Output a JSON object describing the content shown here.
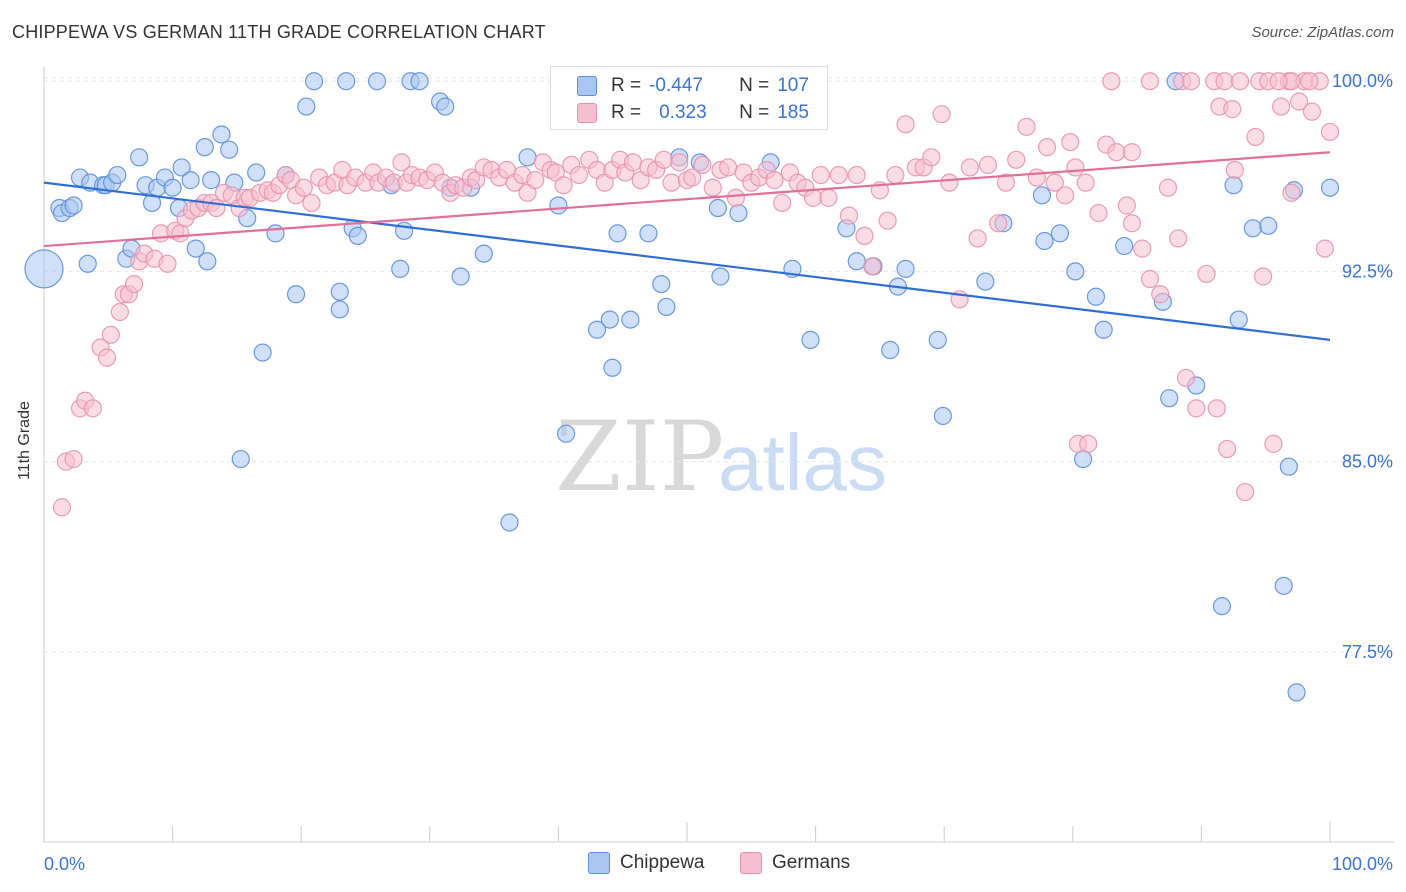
{
  "title": "CHIPPEWA VS GERMAN 11TH GRADE CORRELATION CHART",
  "source": "Source: ZipAtlas.com",
  "watermark": {
    "zip": "ZIP",
    "atlas": "atlas"
  },
  "colors": {
    "chippewa_fill": "#a9c6f2",
    "chippewa_stroke": "#5b8fd8",
    "chippewa_line": "#2f6fd3",
    "germans_fill": "#f6bfd0",
    "germans_stroke": "#e892ad",
    "germans_line": "#e0709a",
    "tick_label": "#3b72d4"
  },
  "legend": {
    "r_label": "R =",
    "n_label": "N =",
    "chippewa": {
      "r": "-0.447",
      "n": "107"
    },
    "germans": {
      "r": "0.323",
      "n": "185"
    }
  },
  "chart_data": {
    "type": "scatter",
    "title": "CHIPPEWA VS GERMAN 11TH GRADE CORRELATION CHART",
    "xlabel": "",
    "ylabel": "11th Grade",
    "xlim": [
      0,
      100
    ],
    "ylim": [
      70,
      100.6
    ],
    "x_tick_labels": [
      "0.0%",
      "100.0%"
    ],
    "y_ticks": [
      {
        "value": 100,
        "label": "100.0%"
      },
      {
        "value": 92.5,
        "label": "92.5%"
      },
      {
        "value": 85,
        "label": "85.0%"
      },
      {
        "value": 77.5,
        "label": "77.5%"
      }
    ],
    "grid": "horizontal dashed",
    "legend_position": "top-center",
    "series": [
      {
        "name": "Chippewa",
        "trend": {
          "x": [
            0,
            100
          ],
          "y": [
            96.0,
            89.8
          ]
        },
        "points": [
          [
            0,
            92.6
          ],
          [
            1.2,
            95.0
          ],
          [
            1.4,
            94.8
          ],
          [
            2.0,
            95.0
          ],
          [
            2.3,
            95.1
          ],
          [
            2.8,
            96.2
          ],
          [
            3.4,
            92.8
          ],
          [
            3.6,
            96.0
          ],
          [
            4.6,
            95.9
          ],
          [
            4.8,
            95.9
          ],
          [
            5.3,
            96.0
          ],
          [
            5.7,
            96.3
          ],
          [
            6.4,
            93.0
          ],
          [
            6.8,
            93.4
          ],
          [
            7.4,
            97.0
          ],
          [
            7.9,
            95.9
          ],
          [
            8.4,
            95.2
          ],
          [
            8.8,
            95.8
          ],
          [
            9.4,
            96.2
          ],
          [
            10.0,
            95.8
          ],
          [
            10.5,
            95.0
          ],
          [
            10.7,
            96.6
          ],
          [
            11.4,
            96.1
          ],
          [
            11.8,
            93.4
          ],
          [
            12.5,
            97.4
          ],
          [
            12.7,
            92.9
          ],
          [
            13.0,
            96.1
          ],
          [
            13.8,
            97.9
          ],
          [
            14.4,
            97.3
          ],
          [
            14.8,
            96.0
          ],
          [
            15.3,
            85.1
          ],
          [
            15.8,
            94.6
          ],
          [
            16.5,
            96.4
          ],
          [
            17.0,
            89.3
          ],
          [
            18.0,
            94.0
          ],
          [
            18.8,
            96.3
          ],
          [
            19.6,
            91.6
          ],
          [
            20.4,
            99.0
          ],
          [
            21.0,
            100.0
          ],
          [
            23.0,
            91.7
          ],
          [
            23.0,
            91.0
          ],
          [
            23.5,
            100.0
          ],
          [
            24.0,
            94.2
          ],
          [
            24.4,
            93.9
          ],
          [
            25.9,
            100.0
          ],
          [
            27.0,
            95.9
          ],
          [
            27.7,
            92.6
          ],
          [
            28.0,
            94.1
          ],
          [
            28.5,
            100.0
          ],
          [
            29.2,
            100.0
          ],
          [
            30.8,
            99.2
          ],
          [
            31.2,
            99.0
          ],
          [
            31.6,
            95.8
          ],
          [
            32.4,
            92.3
          ],
          [
            33.2,
            95.8
          ],
          [
            34.2,
            93.2
          ],
          [
            36.2,
            82.6
          ],
          [
            37.6,
            97.0
          ],
          [
            40.0,
            95.1
          ],
          [
            40.6,
            86.1
          ],
          [
            43.0,
            90.2
          ],
          [
            44.0,
            90.6
          ],
          [
            44.2,
            88.7
          ],
          [
            44.6,
            94.0
          ],
          [
            45.6,
            90.6
          ],
          [
            47.0,
            94.0
          ],
          [
            48.0,
            92.0
          ],
          [
            48.4,
            91.1
          ],
          [
            49.4,
            97.0
          ],
          [
            51.0,
            96.8
          ],
          [
            52.4,
            95.0
          ],
          [
            52.6,
            92.3
          ],
          [
            54.0,
            94.8
          ],
          [
            56.5,
            96.8
          ],
          [
            58.2,
            92.6
          ],
          [
            59.6,
            89.8
          ],
          [
            62.4,
            94.2
          ],
          [
            63.2,
            92.9
          ],
          [
            64.5,
            92.7
          ],
          [
            65.8,
            89.4
          ],
          [
            66.4,
            91.9
          ],
          [
            67.0,
            92.6
          ],
          [
            69.5,
            89.8
          ],
          [
            69.9,
            86.8
          ],
          [
            73.2,
            92.1
          ],
          [
            74.6,
            94.4
          ],
          [
            77.6,
            95.5
          ],
          [
            77.8,
            93.7
          ],
          [
            79.0,
            94.0
          ],
          [
            80.2,
            92.5
          ],
          [
            80.8,
            85.1
          ],
          [
            81.8,
            91.5
          ],
          [
            82.4,
            90.2
          ],
          [
            84.0,
            93.5
          ],
          [
            87.0,
            91.3
          ],
          [
            87.5,
            87.5
          ],
          [
            88.0,
            100.0
          ],
          [
            89.6,
            88.0
          ],
          [
            91.6,
            79.3
          ],
          [
            92.5,
            95.9
          ],
          [
            92.9,
            90.6
          ],
          [
            94.0,
            94.2
          ],
          [
            95.2,
            94.3
          ],
          [
            96.4,
            80.1
          ],
          [
            96.8,
            84.8
          ],
          [
            97.2,
            95.7
          ],
          [
            97.4,
            75.9
          ],
          [
            100.0,
            95.8
          ]
        ]
      },
      {
        "name": "Germans",
        "trend": {
          "x": [
            0,
            100
          ],
          "y": [
            93.5,
            97.2
          ]
        },
        "points": [
          [
            1.4,
            83.2
          ],
          [
            1.7,
            85.0
          ],
          [
            2.3,
            85.1
          ],
          [
            2.8,
            87.1
          ],
          [
            3.2,
            87.4
          ],
          [
            3.8,
            87.1
          ],
          [
            4.4,
            89.5
          ],
          [
            4.9,
            89.1
          ],
          [
            5.2,
            90.0
          ],
          [
            5.9,
            90.9
          ],
          [
            6.2,
            91.6
          ],
          [
            6.6,
            91.6
          ],
          [
            7.0,
            92.0
          ],
          [
            7.4,
            92.9
          ],
          [
            7.8,
            93.2
          ],
          [
            8.6,
            93.0
          ],
          [
            9.1,
            94.0
          ],
          [
            9.6,
            92.8
          ],
          [
            10.2,
            94.1
          ],
          [
            10.6,
            94.0
          ],
          [
            11.0,
            94.6
          ],
          [
            11.5,
            94.9
          ],
          [
            12.0,
            95.0
          ],
          [
            12.5,
            95.2
          ],
          [
            13.0,
            95.2
          ],
          [
            13.4,
            95.0
          ],
          [
            14.0,
            95.6
          ],
          [
            14.6,
            95.5
          ],
          [
            15.2,
            95.0
          ],
          [
            15.6,
            95.4
          ],
          [
            16.0,
            95.4
          ],
          [
            16.8,
            95.6
          ],
          [
            17.4,
            95.7
          ],
          [
            17.8,
            95.6
          ],
          [
            18.3,
            95.9
          ],
          [
            18.8,
            96.3
          ],
          [
            19.2,
            96.1
          ],
          [
            19.6,
            95.5
          ],
          [
            20.2,
            95.8
          ],
          [
            20.8,
            95.2
          ],
          [
            21.4,
            96.2
          ],
          [
            22.0,
            95.9
          ],
          [
            22.6,
            96.0
          ],
          [
            23.2,
            96.5
          ],
          [
            23.6,
            95.9
          ],
          [
            24.2,
            96.2
          ],
          [
            25.0,
            96.0
          ],
          [
            25.6,
            96.4
          ],
          [
            26.0,
            96.0
          ],
          [
            26.6,
            96.2
          ],
          [
            27.2,
            96.0
          ],
          [
            27.8,
            96.8
          ],
          [
            28.2,
            96.0
          ],
          [
            28.6,
            96.3
          ],
          [
            29.2,
            96.2
          ],
          [
            29.8,
            96.1
          ],
          [
            30.4,
            96.4
          ],
          [
            31.0,
            96.0
          ],
          [
            31.6,
            95.6
          ],
          [
            32.0,
            95.9
          ],
          [
            32.6,
            95.8
          ],
          [
            33.2,
            96.2
          ],
          [
            33.6,
            96.1
          ],
          [
            34.2,
            96.6
          ],
          [
            34.8,
            96.5
          ],
          [
            35.4,
            96.2
          ],
          [
            36.0,
            96.5
          ],
          [
            36.6,
            96.0
          ],
          [
            37.2,
            96.3
          ],
          [
            37.6,
            95.6
          ],
          [
            38.2,
            96.1
          ],
          [
            38.8,
            96.8
          ],
          [
            39.4,
            96.5
          ],
          [
            39.8,
            96.4
          ],
          [
            40.4,
            95.9
          ],
          [
            41.0,
            96.7
          ],
          [
            41.6,
            96.3
          ],
          [
            42.4,
            96.9
          ],
          [
            43.0,
            96.5
          ],
          [
            43.6,
            96.0
          ],
          [
            44.2,
            96.5
          ],
          [
            44.8,
            96.9
          ],
          [
            45.2,
            96.4
          ],
          [
            45.8,
            96.8
          ],
          [
            46.4,
            96.1
          ],
          [
            47.0,
            96.6
          ],
          [
            47.6,
            96.5
          ],
          [
            48.2,
            96.9
          ],
          [
            48.8,
            96.0
          ],
          [
            49.4,
            96.8
          ],
          [
            50.0,
            96.1
          ],
          [
            50.4,
            96.2
          ],
          [
            51.2,
            96.7
          ],
          [
            52.0,
            95.8
          ],
          [
            52.6,
            96.5
          ],
          [
            53.2,
            96.6
          ],
          [
            53.8,
            95.4
          ],
          [
            54.4,
            96.4
          ],
          [
            55.0,
            96.0
          ],
          [
            55.6,
            96.2
          ],
          [
            56.2,
            96.5
          ],
          [
            56.8,
            96.1
          ],
          [
            57.4,
            95.2
          ],
          [
            58.0,
            96.4
          ],
          [
            58.6,
            96.0
          ],
          [
            59.2,
            95.8
          ],
          [
            59.8,
            95.4
          ],
          [
            60.4,
            96.3
          ],
          [
            61.0,
            95.4
          ],
          [
            61.8,
            96.3
          ],
          [
            62.6,
            94.7
          ],
          [
            63.2,
            96.3
          ],
          [
            63.8,
            93.9
          ],
          [
            64.4,
            92.7
          ],
          [
            65.0,
            95.7
          ],
          [
            65.6,
            94.5
          ],
          [
            66.2,
            96.3
          ],
          [
            67.0,
            98.3
          ],
          [
            67.8,
            96.6
          ],
          [
            68.4,
            96.6
          ],
          [
            69.0,
            97.0
          ],
          [
            69.8,
            98.7
          ],
          [
            70.4,
            96.0
          ],
          [
            71.2,
            91.4
          ],
          [
            72.0,
            96.6
          ],
          [
            72.6,
            93.8
          ],
          [
            73.4,
            96.7
          ],
          [
            74.2,
            94.4
          ],
          [
            74.8,
            96.0
          ],
          [
            75.6,
            96.9
          ],
          [
            76.4,
            98.2
          ],
          [
            77.2,
            96.2
          ],
          [
            78.0,
            97.4
          ],
          [
            78.6,
            96.0
          ],
          [
            79.4,
            95.5
          ],
          [
            80.2,
            96.6
          ],
          [
            81.0,
            96.0
          ],
          [
            82.0,
            94.8
          ],
          [
            82.6,
            97.5
          ],
          [
            83.4,
            97.2
          ],
          [
            84.2,
            95.1
          ],
          [
            84.6,
            94.4
          ],
          [
            85.4,
            93.4
          ],
          [
            86.0,
            92.2
          ],
          [
            86.8,
            91.6
          ],
          [
            87.4,
            95.8
          ],
          [
            88.2,
            93.8
          ],
          [
            88.8,
            88.3
          ],
          [
            89.6,
            87.1
          ],
          [
            90.4,
            92.4
          ],
          [
            91.2,
            87.1
          ],
          [
            92.0,
            85.5
          ],
          [
            92.6,
            96.5
          ],
          [
            93.4,
            83.8
          ],
          [
            94.2,
            97.8
          ],
          [
            94.8,
            92.3
          ],
          [
            95.6,
            85.7
          ],
          [
            96.2,
            99.0
          ],
          [
            96.8,
            100.0
          ],
          [
            97.6,
            99.2
          ],
          [
            98.0,
            100.0
          ],
          [
            98.6,
            98.8
          ],
          [
            99.2,
            100.0
          ],
          [
            99.6,
            93.4
          ],
          [
            100.0,
            98.0
          ],
          [
            83.0,
            100.0
          ],
          [
            86.0,
            100.0
          ],
          [
            88.5,
            100.0
          ],
          [
            89.2,
            100.0
          ],
          [
            91.0,
            100.0
          ],
          [
            91.8,
            100.0
          ],
          [
            93.0,
            100.0
          ],
          [
            94.5,
            100.0
          ],
          [
            95.2,
            100.0
          ],
          [
            97.0,
            100.0
          ],
          [
            98.4,
            100.0
          ],
          [
            96.0,
            100.0
          ],
          [
            91.4,
            99.0
          ],
          [
            84.6,
            97.2
          ],
          [
            97.0,
            95.6
          ],
          [
            79.8,
            97.6
          ],
          [
            80.4,
            85.7
          ],
          [
            81.2,
            85.7
          ],
          [
            92.4,
            98.9
          ]
        ]
      }
    ]
  },
  "bottom_legend": [
    {
      "label": "Chippewa"
    },
    {
      "label": "Germans"
    }
  ]
}
